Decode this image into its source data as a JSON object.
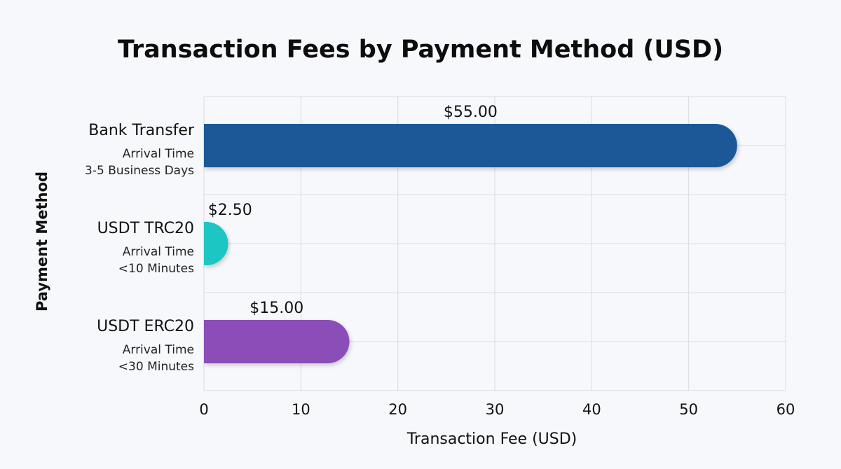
{
  "chart_data": {
    "type": "bar",
    "orientation": "horizontal",
    "title": "Transaction Fees by Payment Method (USD)",
    "xlabel": "Transaction Fee (USD)",
    "ylabel": "Payment Method",
    "xlim": [
      0,
      60
    ],
    "xticks": [
      "0",
      "10",
      "20",
      "30",
      "40",
      "50",
      "60"
    ],
    "grid": true,
    "categories": [
      {
        "name": "Bank Transfer",
        "sub1": "Arrival Time",
        "sub2": "3-5 Business Days"
      },
      {
        "name": "USDT TRC20",
        "sub1": "Arrival Time",
        "sub2": "<10 Minutes"
      },
      {
        "name": "USDT ERC20",
        "sub1": "Arrival Time",
        "sub2": "<30 Minutes"
      }
    ],
    "values": [
      55,
      2.5,
      15
    ],
    "data_labels": [
      "$55.00",
      "$2.50",
      "$15.00"
    ],
    "colors": [
      "#1f5898",
      "#1dc7c3",
      "#8b4db8"
    ]
  }
}
